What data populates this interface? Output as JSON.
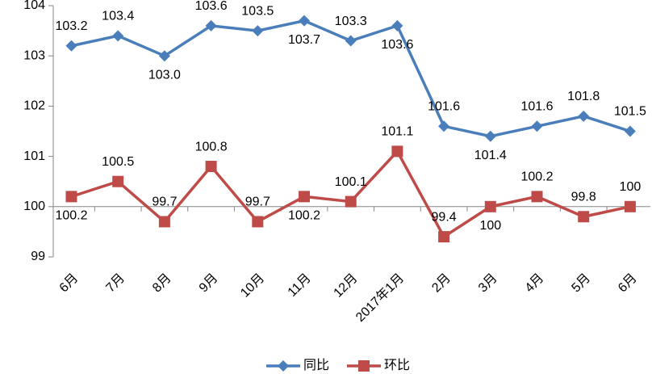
{
  "chart_data": {
    "type": "line",
    "categories": [
      "6月",
      "7月",
      "8月",
      "9月",
      "10月",
      "11月",
      "12月",
      "2017年1月",
      "2月",
      "3月",
      "4月",
      "5月",
      "6月"
    ],
    "series": [
      {
        "name": "同比",
        "color": "#4a7ebb",
        "marker": "diamond",
        "values": [
          103.2,
          103.4,
          103.0,
          103.6,
          103.5,
          103.7,
          103.3,
          103.6,
          101.6,
          101.4,
          101.6,
          101.8,
          101.5
        ],
        "value_labels": [
          "103.2",
          "103.4",
          "103.0",
          "103.6",
          "103.5",
          "103.7",
          "103.3",
          "103.6",
          "101.6",
          "101.4",
          "101.6",
          "101.8",
          "101.5"
        ]
      },
      {
        "name": "环比",
        "color": "#be4b48",
        "marker": "square",
        "values": [
          100.2,
          100.5,
          99.7,
          100.8,
          99.7,
          100.2,
          100.1,
          101.1,
          99.4,
          100,
          100.2,
          99.8,
          100
        ]
      }
    ],
    "ylim": [
      99,
      104
    ],
    "yticks": [
      99,
      100,
      101,
      102,
      103,
      104
    ],
    "x_axis_at": 100,
    "grid": false
  }
}
